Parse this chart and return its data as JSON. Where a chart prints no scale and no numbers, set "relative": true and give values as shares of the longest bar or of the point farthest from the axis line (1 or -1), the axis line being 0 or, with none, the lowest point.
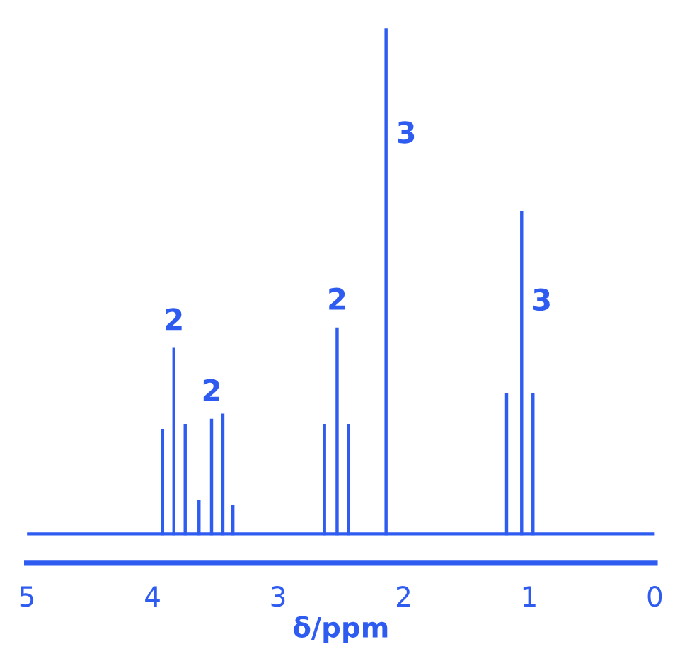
{
  "chart_data": {
    "type": "bar",
    "relative": true,
    "xlabel": "δ/ppm",
    "xlim": [
      5,
      0
    ],
    "xticks": [
      5,
      4,
      3,
      2,
      1,
      0
    ],
    "tick_labels": "x",
    "grid": false,
    "x": [
      3.92,
      3.83,
      3.74,
      3.63,
      3.53,
      3.44,
      3.36,
      2.63,
      2.53,
      2.44,
      2.14,
      1.18,
      1.06,
      0.97
    ],
    "series": [
      {
        "color": "#2f5cf0",
        "values": [
          0.21,
          0.37,
          0.22,
          0.07,
          0.23,
          0.24,
          0.06,
          0.22,
          0.41,
          0.22,
          1,
          0.28,
          0.64,
          0.28
        ]
      }
    ],
    "annotations": [
      {
        "text": "2",
        "x": 3.83,
        "y": 0.37
      },
      {
        "text": "2",
        "x": 3.53,
        "y": 0.23
      },
      {
        "text": "2",
        "x": 2.53,
        "y": 0.41
      },
      {
        "text": "3",
        "x": 2.14,
        "y": 0.79
      },
      {
        "text": "3",
        "x": 1.06,
        "y": 0.46
      }
    ]
  }
}
